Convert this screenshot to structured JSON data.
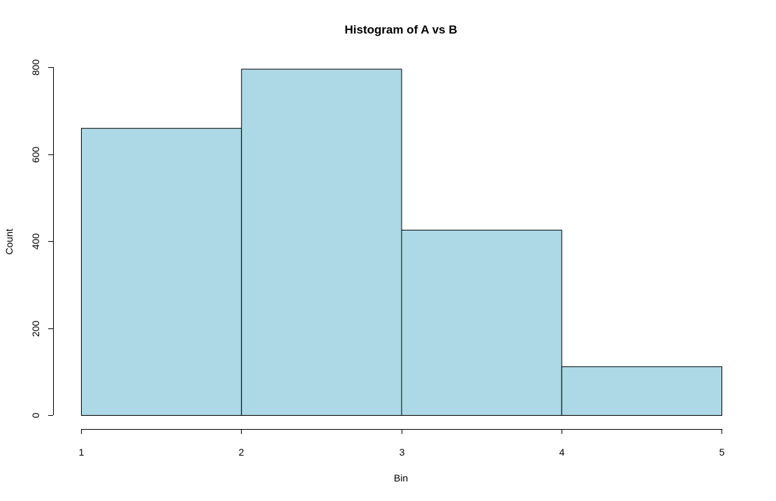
{
  "chart_data": {
    "type": "bar",
    "subtype": "histogram",
    "title": "Histogram of A vs B",
    "xlabel": "Bin",
    "ylabel": "Count",
    "bins": [
      {
        "from": 1,
        "to": 2,
        "count": 660
      },
      {
        "from": 2,
        "to": 3,
        "count": 796
      },
      {
        "from": 3,
        "to": 4,
        "count": 426
      },
      {
        "from": 4,
        "to": 5,
        "count": 112
      }
    ],
    "xlim": [
      1,
      5
    ],
    "ylim": [
      0,
      800
    ],
    "x_ticks": [
      "1",
      "2",
      "3",
      "4",
      "5"
    ],
    "y_ticks": [
      "0",
      "200",
      "400",
      "600",
      "800"
    ],
    "grid": false,
    "legend": "none",
    "colors": {
      "bar_fill": "#ADD8E6",
      "bar_stroke": "#000000",
      "axis": "#000000",
      "background": "#FFFFFF"
    }
  }
}
